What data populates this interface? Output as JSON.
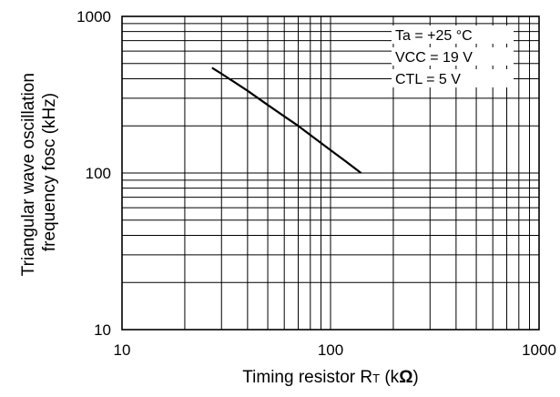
{
  "chart_data": {
    "type": "line",
    "xscale": "log",
    "yscale": "log",
    "xlim": [
      10,
      1000
    ],
    "ylim": [
      10,
      1000
    ],
    "grid": true,
    "xlabel": "Timing resistor RT (kΩ)",
    "xlabel_parts": {
      "main": "Timing resistor R",
      "sub": "T",
      "unit_open": " (k",
      "unit_symbol": "Ω",
      "unit_close": ")"
    },
    "ylabel_lines": [
      "Triangular wave oscillation",
      "frequency fosc (kHz)"
    ],
    "x_ticks": [
      {
        "value": 10,
        "label": "10"
      },
      {
        "value": 100,
        "label": "100"
      },
      {
        "value": 1000,
        "label": "1000"
      }
    ],
    "y_ticks": [
      {
        "value": 10,
        "label": "10"
      },
      {
        "value": 100,
        "label": "100"
      },
      {
        "value": 1000,
        "label": "1000"
      }
    ],
    "annotations": [
      "Ta = +25 °C",
      "VCC = 19 V",
      "CTL = 5 V"
    ],
    "series": [
      {
        "color": "#000000",
        "x": [
          27,
          30,
          40,
          50,
          60,
          70,
          80,
          100,
          120,
          140
        ],
        "y": [
          470,
          430,
          335,
          272,
          230,
          200,
          175,
          140,
          117,
          100
        ]
      }
    ]
  }
}
